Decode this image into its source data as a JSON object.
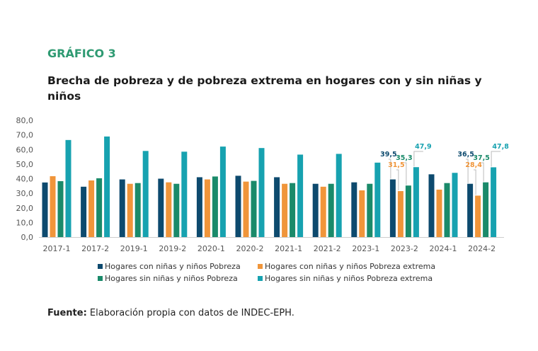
{
  "kicker": "GRÁFICO 3",
  "source_label": "Fuente:",
  "source_text": " Elaboración propia con datos de INDEC-EPH.",
  "chart_data": {
    "type": "bar",
    "title": "Brecha de pobreza y de pobreza extrema en hogares con y sin niñas y niños",
    "xlabel": "",
    "ylabel": "",
    "ylim": [
      0,
      80
    ],
    "yticks": [
      "0,0",
      "10,0",
      "20,0",
      "30,0",
      "40,0",
      "50,0",
      "60,0",
      "70,0",
      "80,0"
    ],
    "grid": false,
    "legend_position": "bottom",
    "categories": [
      "2017-1",
      "2017-2",
      "2019-1",
      "2019-2",
      "2020-1",
      "2020-2",
      "2021-1",
      "2021-2",
      "2023-1",
      "2023-2",
      "2024-1",
      "2024-2"
    ],
    "series": [
      {
        "name": "Hogares con niñas y niños Pobreza",
        "color": "#0d4a6e",
        "values": [
          37.4,
          34.5,
          39.5,
          40.0,
          41.0,
          42.0,
          41.0,
          36.5,
          37.5,
          39.5,
          43.0,
          36.5
        ]
      },
      {
        "name": "Hogares con niñas y niños Pobreza extrema",
        "color": "#f0953a",
        "values": [
          41.7,
          38.8,
          36.5,
          37.5,
          39.5,
          38.0,
          36.5,
          34.5,
          32.0,
          31.5,
          32.5,
          28.4
        ]
      },
      {
        "name": "Hogares sin niñas y niños Pobreza",
        "color": "#1a8a6a",
        "values": [
          38.3,
          40.3,
          37.0,
          36.5,
          41.5,
          38.5,
          37.0,
          36.5,
          36.5,
          35.3,
          37.0,
          37.5
        ]
      },
      {
        "name": "Hogares sin niñas y niños Pobreza extrema",
        "color": "#17a2b0",
        "values": [
          66.5,
          68.9,
          59.0,
          58.5,
          62.0,
          61.0,
          56.5,
          57.0,
          51.0,
          47.9,
          44.0,
          47.8
        ]
      }
    ],
    "data_labels": [
      {
        "category": "2023-2",
        "labels": [
          "39,5",
          "31,5",
          "35,3",
          "47,9"
        ]
      },
      {
        "category": "2024-2",
        "labels": [
          "36,5",
          "28,4",
          "37,5",
          "47,8"
        ]
      }
    ]
  }
}
